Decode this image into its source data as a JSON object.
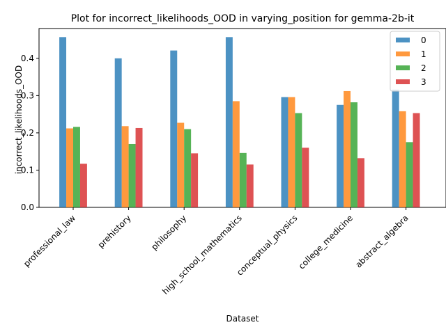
{
  "chart_data": {
    "type": "bar",
    "title": "Plot for incorrect_likelihoods_OOD in varying_position for gemma-2b-it",
    "xlabel": "Dataset",
    "ylabel": "incorrect_likelihoods_OOD",
    "categories": [
      "professional_law",
      "prehistory",
      "philosophy",
      "high_school_mathematics",
      "conceptual_physics",
      "college_medicine",
      "abstract_algebra"
    ],
    "series": [
      {
        "name": "0",
        "color": "#1f77b4",
        "values": [
          0.457,
          0.4,
          0.421,
          0.457,
          0.296,
          0.275,
          0.316
        ]
      },
      {
        "name": "1",
        "color": "#ff7f0e",
        "values": [
          0.212,
          0.218,
          0.227,
          0.285,
          0.296,
          0.312,
          0.258
        ]
      },
      {
        "name": "2",
        "color": "#2ca02c",
        "values": [
          0.216,
          0.17,
          0.21,
          0.146,
          0.253,
          0.282,
          0.175
        ]
      },
      {
        "name": "3",
        "color": "#d62728",
        "values": [
          0.117,
          0.213,
          0.145,
          0.115,
          0.16,
          0.132,
          0.253
        ]
      }
    ],
    "ylim": [
      0,
      0.48
    ],
    "yticks": [
      "0.0",
      "0.1",
      "0.2",
      "0.3",
      "0.4"
    ],
    "grid": false,
    "legend_position": "top-right",
    "bar_opacity": 0.8
  }
}
